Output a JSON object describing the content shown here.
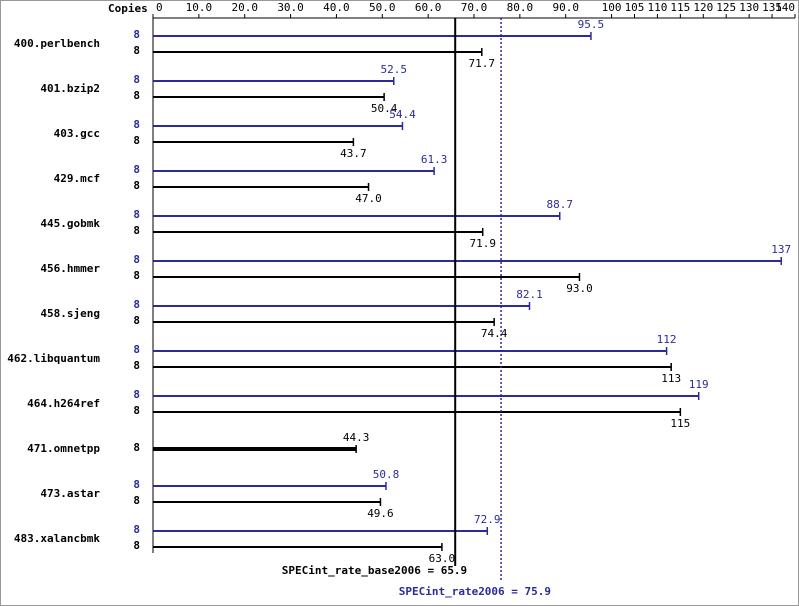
{
  "chart_data": {
    "type": "bar",
    "orientation": "horizontal",
    "x_axis_label": "Copies",
    "categories": [
      "400.perlbench",
      "401.bzip2",
      "403.gcc",
      "429.mcf",
      "445.gobmk",
      "456.hmmer",
      "458.sjeng",
      "462.libquantum",
      "464.h264ref",
      "471.omnetpp",
      "473.astar",
      "483.xalancbmk"
    ],
    "series": [
      {
        "name": "SPECint_rate2006",
        "color": "#2b2b99",
        "copies": [
          8,
          8,
          8,
          8,
          8,
          8,
          8,
          8,
          8,
          null,
          8,
          8
        ],
        "values": [
          95.5,
          52.5,
          54.4,
          61.3,
          88.7,
          137,
          82.1,
          112,
          119,
          null,
          50.8,
          72.9
        ],
        "value_labels": [
          "95.5",
          "52.5",
          "54.4",
          "61.3",
          "88.7",
          "137",
          "82.1",
          "112",
          "119",
          null,
          "50.8",
          "72.9"
        ]
      },
      {
        "name": "SPECint_rate_base2006",
        "color": "#000000",
        "copies": [
          8,
          8,
          8,
          8,
          8,
          8,
          8,
          8,
          8,
          8,
          8,
          8
        ],
        "values": [
          71.7,
          50.4,
          43.7,
          47.0,
          71.9,
          93.0,
          74.4,
          113,
          115,
          44.3,
          49.6,
          63.0
        ],
        "value_labels": [
          "71.7",
          "50.4",
          "43.7",
          "47.0",
          "71.9",
          "93.0",
          "74.4",
          "113",
          "115",
          "44.3",
          "49.6",
          "63.0"
        ]
      }
    ],
    "reference_lines": [
      {
        "label": "SPECint_rate_base2006 = 65.9",
        "value": 65.9,
        "color": "#000000",
        "style": "solid"
      },
      {
        "label": "SPECint_rate2006 = 75.9",
        "value": 75.9,
        "color": "#2b2b99",
        "style": "dotted"
      }
    ],
    "xlim": [
      0,
      140
    ],
    "xticks": [
      0,
      {
        "value": 10,
        "label": "10.0"
      },
      {
        "value": 20,
        "label": "20.0"
      },
      {
        "value": 30,
        "label": "30.0"
      },
      {
        "value": 40,
        "label": "40.0"
      },
      {
        "value": 50,
        "label": "50.0"
      },
      {
        "value": 60,
        "label": "60.0"
      },
      {
        "value": 70,
        "label": "70.0"
      },
      {
        "value": 80,
        "label": "80.0"
      },
      {
        "value": 90,
        "label": "90.0"
      },
      100,
      105,
      110,
      115,
      120,
      125,
      130,
      135,
      140
    ]
  }
}
